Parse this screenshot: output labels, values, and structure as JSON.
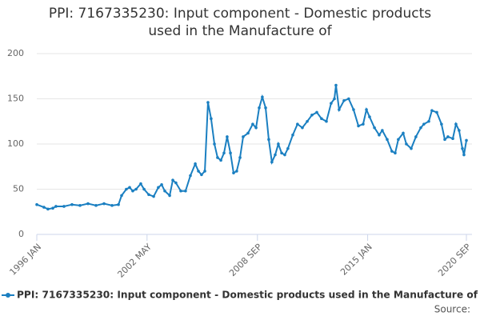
{
  "chart_data": {
    "type": "line",
    "title": [
      "PPI: 7167335230: Input component - Domestic products",
      "used in the Manufacture of"
    ],
    "source": "Source:",
    "x": [
      1996.0,
      1996.41,
      1996.64,
      1996.92,
      1997.1,
      1997.56,
      1998.02,
      1998.48,
      1998.94,
      1999.4,
      1999.86,
      2000.32,
      2000.69,
      2000.87,
      2001.14,
      2001.33,
      2001.51,
      2001.7,
      2001.97,
      2002.16,
      2002.43,
      2002.71,
      2002.98,
      2003.17,
      2003.35,
      2003.63,
      2003.81,
      2003.99,
      2004.27,
      2004.54,
      2004.82,
      2005.1,
      2005.28,
      2005.46,
      2005.65,
      2005.83,
      2006.01,
      2006.2,
      2006.38,
      2006.57,
      2006.75,
      2006.93,
      2007.12,
      2007.3,
      2007.48,
      2007.67,
      2007.85,
      2008.13,
      2008.4,
      2008.59,
      2008.77,
      2008.95,
      2009.14,
      2009.32,
      2009.5,
      2009.69,
      2009.87,
      2010.06,
      2010.24,
      2010.42,
      2010.7,
      2010.97,
      2011.25,
      2011.53,
      2011.8,
      2012.08,
      2012.35,
      2012.63,
      2012.9,
      2013.09,
      2013.18,
      2013.36,
      2013.64,
      2013.91,
      2014.19,
      2014.47,
      2014.74,
      2014.93,
      2015.11,
      2015.39,
      2015.66,
      2015.84,
      2016.12,
      2016.39,
      2016.58,
      2016.76,
      2017.04,
      2017.22,
      2017.5,
      2017.77,
      2018.05,
      2018.23,
      2018.51,
      2018.69,
      2018.97,
      2019.24,
      2019.43,
      2019.61,
      2019.89,
      2020.07,
      2020.25,
      2020.44,
      2020.53,
      2020.67
    ],
    "series": [
      {
        "name": "PPI: 7167335230: Input component - Domestic products used in the Manufacture of",
        "color": "#1a7fc1",
        "values": [
          33,
          30,
          28,
          29,
          31,
          31,
          33,
          32,
          34,
          32,
          34,
          32,
          33,
          43,
          50,
          52,
          48,
          50,
          56,
          50,
          44,
          42,
          52,
          55,
          48,
          43,
          60,
          57,
          48,
          48,
          65,
          78,
          70,
          66,
          70,
          146,
          128,
          100,
          85,
          82,
          90,
          108,
          90,
          68,
          70,
          85,
          108,
          112,
          122,
          118,
          140,
          152,
          140,
          105,
          80,
          88,
          100,
          90,
          88,
          95,
          110,
          122,
          118,
          125,
          132,
          135,
          128,
          125,
          145,
          150,
          165,
          138,
          148,
          150,
          138,
          120,
          122,
          138,
          130,
          118,
          110,
          115,
          105,
          92,
          90,
          105,
          112,
          100,
          95,
          108,
          118,
          122,
          125,
          137,
          135,
          122,
          105,
          108,
          106,
          122,
          115,
          95,
          88,
          104
        ]
      }
    ],
    "xlim": [
      1996,
      2020.67
    ],
    "xticks": [
      {
        "value": 1996,
        "label": "1996 JAN"
      },
      {
        "value": 2002.33,
        "label": "2002 MAY"
      },
      {
        "value": 2008.67,
        "label": "2008 SEP"
      },
      {
        "value": 2015,
        "label": "2015 JAN"
      },
      {
        "value": 2020.67,
        "label": "2020 SEP"
      }
    ],
    "ylim": [
      0,
      200
    ],
    "yticks": [
      0,
      50,
      100,
      150,
      200
    ],
    "grid": true
  }
}
